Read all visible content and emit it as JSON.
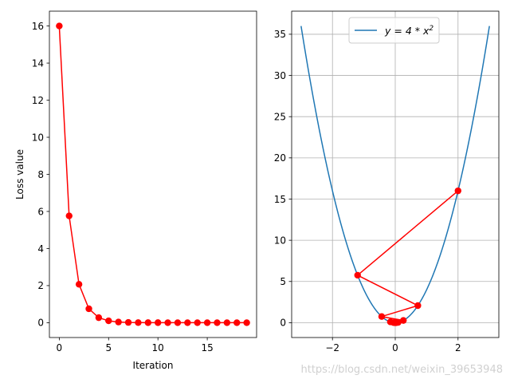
{
  "chart_data": [
    {
      "type": "line",
      "xlabel": "Iteration",
      "ylabel": "Loss value",
      "xlim": [
        -1,
        20
      ],
      "ylim": [
        -0.8,
        16.8
      ],
      "xticks": [
        "0",
        "5",
        "10",
        "15"
      ],
      "yticks": [
        "0",
        "2",
        "4",
        "6",
        "8",
        "10",
        "12",
        "14",
        "16"
      ],
      "grid": false,
      "series": [
        {
          "color": "#ff0000",
          "marker": "circle",
          "x": [
            0,
            1,
            2,
            3,
            4,
            5,
            6,
            7,
            8,
            9,
            10,
            11,
            12,
            13,
            14,
            15,
            16,
            17,
            18,
            19
          ],
          "y": [
            16,
            5.76,
            2.07,
            0.75,
            0.27,
            0.1,
            0.035,
            0.013,
            0.005,
            0.002,
            0.001,
            0,
            0,
            0,
            0,
            0,
            0,
            0,
            0,
            0
          ]
        }
      ]
    },
    {
      "type": "line",
      "xlabel": "",
      "ylabel": "",
      "xlim": [
        -3.3,
        3.3
      ],
      "ylim": [
        -1.8,
        37.8
      ],
      "xticks": [
        "−2",
        "0",
        "2"
      ],
      "yticks": [
        "0",
        "5",
        "10",
        "15",
        "20",
        "25",
        "30",
        "35"
      ],
      "grid": true,
      "legend": {
        "position": "top-center",
        "entries": [
          "y = 4 * x²"
        ]
      },
      "curve": {
        "label": "y = 4 * x²",
        "color": "#1f77b4",
        "function": "4*x^2",
        "x_range": [
          -3,
          3
        ]
      },
      "series": [
        {
          "color": "#ff0000",
          "marker": "circle",
          "x": [
            2,
            -1.2,
            0.72,
            -0.432,
            0.2592,
            -0.1555,
            0.0933,
            -0.056,
            0.0336,
            -0.0202,
            0.0121
          ],
          "y": [
            16,
            5.76,
            2.0736,
            0.7465,
            0.2687,
            0.0967,
            0.0348,
            0.0125,
            0.0045,
            0.0016,
            0.0006
          ]
        }
      ]
    }
  ],
  "watermark": "https://blog.csdn.net/weixin_39653948"
}
